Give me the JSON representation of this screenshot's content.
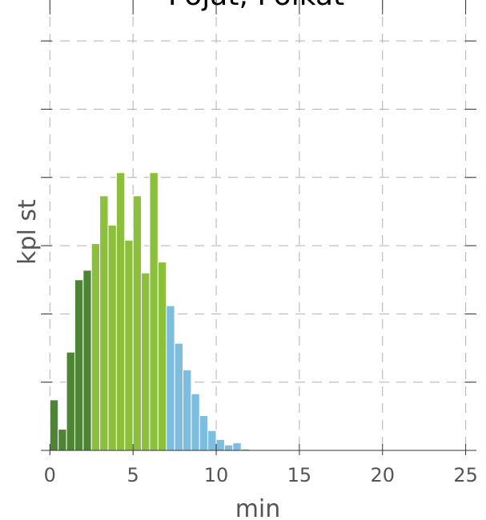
{
  "chart_data": {
    "type": "bar",
    "title": "Pojat, Poikat",
    "xlabel": "min",
    "ylabel": "kpl st",
    "xlim": [
      -0.4,
      25.5
    ],
    "ylim": [
      0,
      660
    ],
    "grid": true,
    "x_ticks": [
      0,
      5,
      10,
      15,
      20,
      25
    ],
    "x_tick_labels": [
      "0",
      "5",
      "10",
      "15",
      "20",
      "25"
    ],
    "y_ticks": [
      0,
      100,
      200,
      300,
      400,
      500,
      600
    ],
    "bin_width": 0.5,
    "colors": {
      "dark_green": "#4e8534",
      "light_green": "#8cc03c",
      "blue": "#7dbde0"
    },
    "bins": [
      {
        "x": 0.0,
        "value": 74,
        "color": "dark_green"
      },
      {
        "x": 0.5,
        "value": 31,
        "color": "dark_green"
      },
      {
        "x": 1.0,
        "value": 144,
        "color": "dark_green"
      },
      {
        "x": 1.5,
        "value": 250,
        "color": "dark_green"
      },
      {
        "x": 2.0,
        "value": 264,
        "color": "dark_green"
      },
      {
        "x": 2.5,
        "value": 303,
        "color": "light_green"
      },
      {
        "x": 3.0,
        "value": 373,
        "color": "light_green"
      },
      {
        "x": 3.5,
        "value": 330,
        "color": "light_green"
      },
      {
        "x": 4.0,
        "value": 407,
        "color": "light_green"
      },
      {
        "x": 4.5,
        "value": 308,
        "color": "light_green"
      },
      {
        "x": 5.0,
        "value": 373,
        "color": "light_green"
      },
      {
        "x": 5.5,
        "value": 260,
        "color": "light_green"
      },
      {
        "x": 6.0,
        "value": 407,
        "color": "light_green"
      },
      {
        "x": 6.5,
        "value": 276,
        "color": "light_green"
      },
      {
        "x": 7.0,
        "value": 212,
        "color": "blue"
      },
      {
        "x": 7.5,
        "value": 157,
        "color": "blue"
      },
      {
        "x": 8.0,
        "value": 118,
        "color": "blue"
      },
      {
        "x": 8.5,
        "value": 83,
        "color": "blue"
      },
      {
        "x": 9.0,
        "value": 51,
        "color": "blue"
      },
      {
        "x": 9.5,
        "value": 29,
        "color": "blue"
      },
      {
        "x": 10.0,
        "value": 16,
        "color": "blue"
      },
      {
        "x": 10.5,
        "value": 8,
        "color": "blue"
      },
      {
        "x": 11.0,
        "value": 11,
        "color": "blue"
      },
      {
        "x": 11.5,
        "value": 2,
        "color": "blue"
      },
      {
        "x": 12.0,
        "value": 1,
        "color": "blue"
      },
      {
        "x": 12.5,
        "value": 1,
        "color": "blue"
      },
      {
        "x": 13.0,
        "value": 1,
        "color": "blue"
      }
    ]
  }
}
